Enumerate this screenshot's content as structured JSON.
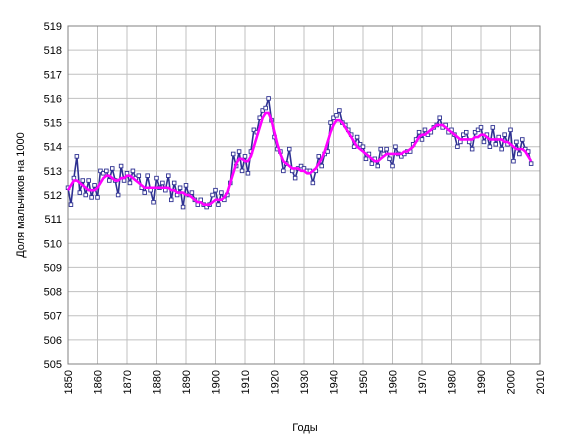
{
  "chart_data": {
    "type": "line",
    "xlabel": "Годы",
    "ylabel": "Доля мальчиков на 1000",
    "x": [
      1850,
      1851,
      1852,
      1853,
      1854,
      1855,
      1856,
      1857,
      1858,
      1859,
      1860,
      1861,
      1862,
      1863,
      1864,
      1865,
      1866,
      1867,
      1868,
      1869,
      1870,
      1871,
      1872,
      1873,
      1874,
      1875,
      1876,
      1877,
      1878,
      1879,
      1880,
      1881,
      1882,
      1883,
      1884,
      1885,
      1886,
      1887,
      1888,
      1889,
      1890,
      1891,
      1892,
      1893,
      1894,
      1895,
      1896,
      1897,
      1898,
      1899,
      1900,
      1901,
      1902,
      1903,
      1904,
      1905,
      1906,
      1907,
      1908,
      1909,
      1910,
      1911,
      1912,
      1913,
      1914,
      1915,
      1916,
      1917,
      1918,
      1919,
      1920,
      1921,
      1922,
      1923,
      1924,
      1925,
      1926,
      1927,
      1928,
      1929,
      1930,
      1931,
      1932,
      1933,
      1934,
      1935,
      1936,
      1937,
      1938,
      1939,
      1940,
      1941,
      1942,
      1943,
      1944,
      1945,
      1946,
      1947,
      1948,
      1949,
      1950,
      1951,
      1952,
      1953,
      1954,
      1955,
      1956,
      1957,
      1958,
      1959,
      1960,
      1961,
      1962,
      1963,
      1964,
      1965,
      1966,
      1967,
      1968,
      1969,
      1970,
      1971,
      1972,
      1973,
      1974,
      1975,
      1976,
      1977,
      1978,
      1979,
      1980,
      1981,
      1982,
      1983,
      1984,
      1985,
      1986,
      1987,
      1988,
      1989,
      1990,
      1991,
      1992,
      1993,
      1994,
      1995,
      1996,
      1997,
      1998,
      1999,
      2000,
      2001,
      2002,
      2003,
      2004,
      2005,
      2006,
      2007
    ],
    "series": [
      {
        "color": "#2e3192",
        "markers": true,
        "values": [
          512.3,
          511.6,
          512.7,
          513.6,
          512.1,
          512.6,
          512.0,
          512.6,
          511.9,
          512.4,
          511.9,
          513.0,
          512.9,
          513.0,
          512.6,
          513.1,
          512.6,
          512.0,
          513.2,
          512.6,
          512.9,
          512.5,
          513.0,
          512.7,
          512.8,
          512.3,
          512.1,
          512.8,
          512.2,
          511.7,
          512.7,
          512.3,
          512.5,
          512.2,
          512.8,
          511.8,
          512.5,
          512.0,
          512.3,
          511.5,
          512.4,
          512.0,
          512.1,
          511.8,
          511.6,
          511.8,
          511.6,
          511.5,
          511.6,
          512.0,
          512.2,
          511.6,
          512.1,
          511.8,
          512.0,
          512.5,
          513.7,
          513.2,
          513.8,
          513.0,
          513.6,
          512.9,
          513.8,
          514.7,
          514.6,
          515.2,
          515.5,
          515.6,
          516.0,
          515.1,
          514.4,
          513.9,
          513.8,
          513.0,
          513.3,
          513.9,
          513.0,
          512.7,
          513.1,
          513.2,
          513.1,
          513.0,
          513.0,
          512.5,
          513.0,
          513.6,
          513.2,
          513.7,
          513.8,
          515.0,
          515.2,
          515.3,
          515.5,
          515.0,
          514.9,
          514.7,
          514.5,
          514.0,
          514.4,
          514.1,
          514.0,
          513.5,
          513.7,
          513.3,
          513.5,
          513.2,
          513.9,
          513.7,
          513.9,
          513.5,
          513.2,
          514.0,
          513.7,
          513.6,
          513.7,
          513.8,
          513.8,
          514.1,
          514.3,
          514.6,
          514.3,
          514.7,
          514.5,
          514.6,
          514.8,
          514.9,
          515.2,
          514.8,
          514.9,
          514.6,
          514.7,
          514.5,
          514.0,
          514.2,
          514.5,
          514.6,
          514.2,
          513.9,
          514.6,
          514.7,
          514.8,
          514.2,
          514.5,
          514.0,
          514.8,
          514.1,
          514.4,
          513.9,
          514.5,
          514.1,
          514.7,
          513.4,
          514.2,
          513.7,
          514.3,
          513.9,
          513.8,
          513.3
        ]
      },
      {
        "color": "#ff00ff",
        "markers": false,
        "values": [
          512.2,
          512.4,
          512.6,
          512.6,
          512.5,
          512.4,
          512.3,
          512.2,
          512.2,
          512.2,
          512.3,
          512.5,
          512.7,
          512.8,
          512.8,
          512.7,
          512.6,
          512.6,
          512.7,
          512.7,
          512.8,
          512.8,
          512.7,
          512.6,
          512.5,
          512.4,
          512.3,
          512.3,
          512.3,
          512.3,
          512.3,
          512.3,
          512.3,
          512.3,
          512.3,
          512.2,
          512.2,
          512.1,
          512.1,
          512.1,
          512.0,
          512.0,
          511.9,
          511.8,
          511.7,
          511.7,
          511.6,
          511.6,
          511.6,
          511.7,
          511.8,
          511.8,
          511.8,
          511.9,
          512.1,
          512.5,
          512.9,
          513.3,
          513.5,
          513.5,
          513.4,
          513.4,
          513.6,
          514.0,
          514.4,
          514.8,
          515.2,
          515.4,
          515.4,
          515.1,
          514.6,
          514.1,
          513.7,
          513.4,
          513.3,
          513.2,
          513.1,
          513.1,
          513.1,
          513.0,
          513.0,
          512.9,
          512.9,
          513.0,
          513.1,
          513.3,
          513.5,
          513.8,
          514.2,
          514.6,
          514.9,
          515.1,
          515.1,
          515.0,
          514.8,
          514.6,
          514.4,
          514.2,
          514.0,
          513.9,
          513.8,
          513.7,
          513.6,
          513.5,
          513.4,
          513.4,
          513.5,
          513.6,
          513.7,
          513.7,
          513.7,
          513.7,
          513.7,
          513.7,
          513.8,
          513.8,
          513.9,
          514.0,
          514.2,
          514.4,
          514.5,
          514.5,
          514.6,
          514.7,
          514.8,
          514.9,
          514.9,
          514.9,
          514.8,
          514.7,
          514.6,
          514.5,
          514.4,
          514.3,
          514.3,
          514.3,
          514.3,
          514.3,
          514.4,
          514.4,
          514.5,
          514.5,
          514.4,
          514.3,
          514.3,
          514.3,
          514.3,
          514.3,
          514.2,
          514.2,
          514.1,
          514.0,
          513.9,
          513.9,
          513.9,
          513.8,
          513.6,
          513.4
        ]
      }
    ],
    "xlim": [
      1850,
      2010
    ],
    "xticks": [
      1850,
      1860,
      1870,
      1880,
      1890,
      1900,
      1910,
      1920,
      1930,
      1940,
      1950,
      1960,
      1970,
      1980,
      1990,
      2000,
      2010
    ],
    "ylim": [
      505,
      519
    ],
    "yticks": [
      505,
      506,
      507,
      508,
      509,
      510,
      511,
      512,
      513,
      514,
      515,
      516,
      517,
      518,
      519
    ],
    "grid": true
  }
}
